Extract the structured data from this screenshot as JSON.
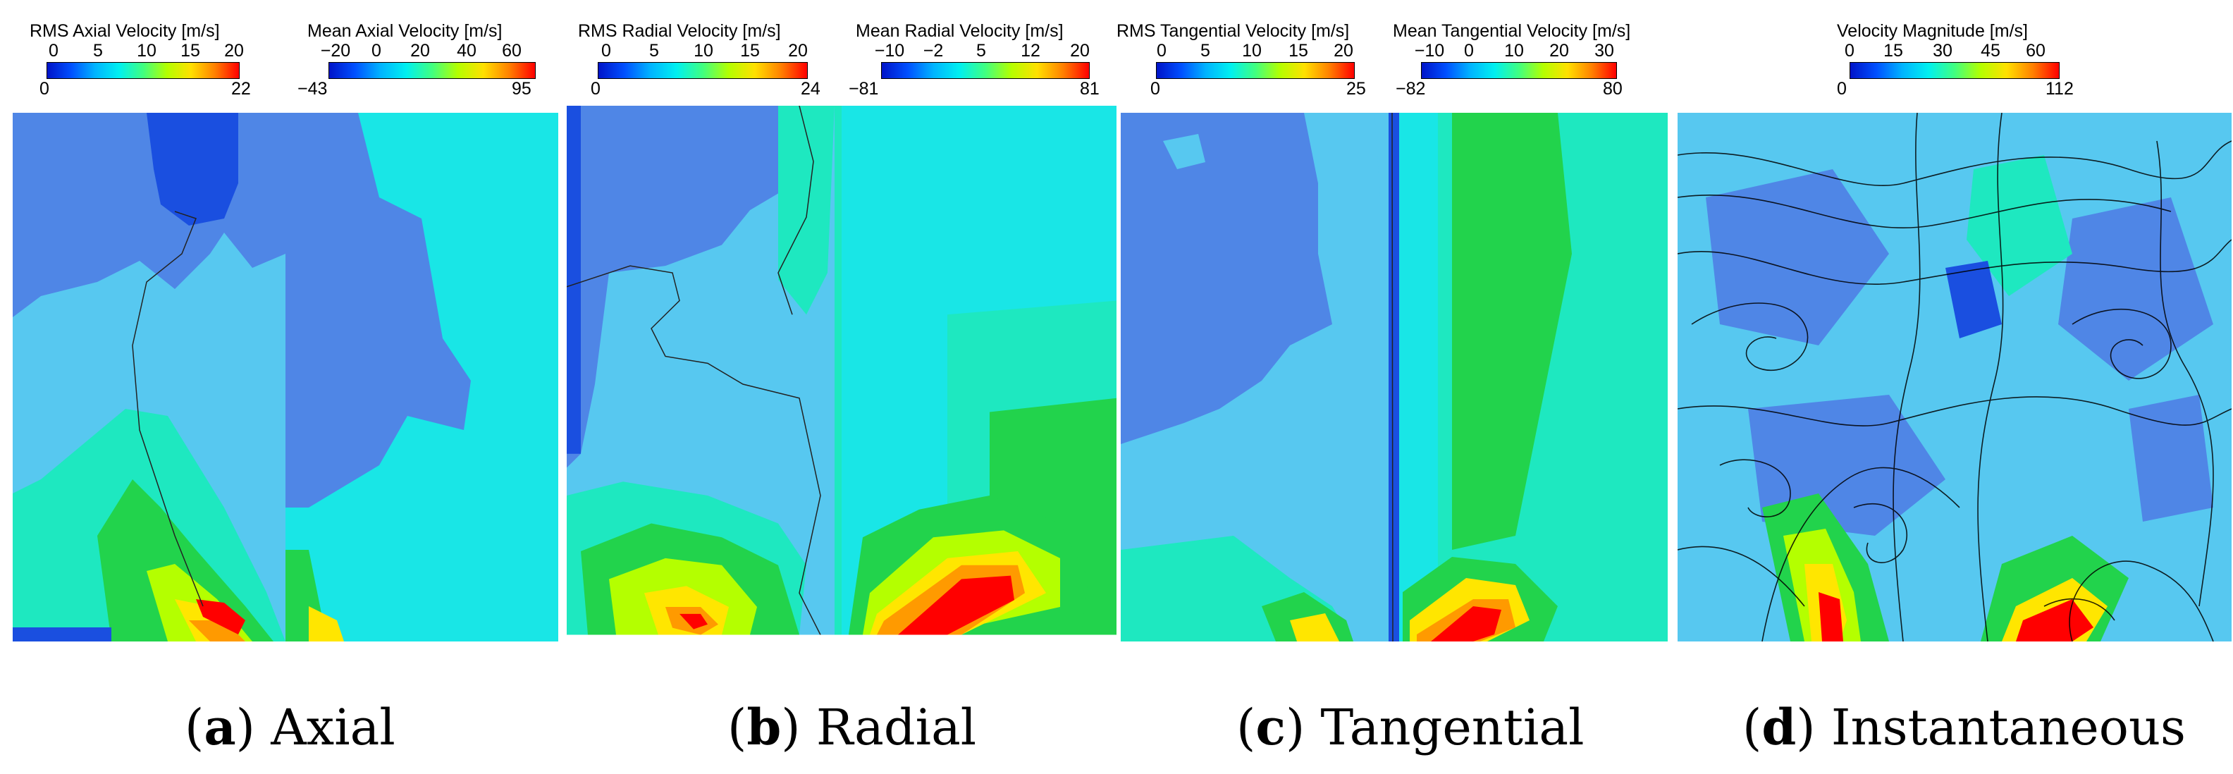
{
  "panels": [
    {
      "caption": {
        "letter": "a",
        "label": "Axial"
      },
      "left_bar": {
        "title": "RMS Axial Velocity [m/s]",
        "ticks": [
          "0",
          "5",
          "10",
          "15",
          "20"
        ],
        "min": "0",
        "max": "22"
      },
      "right_bar": {
        "title": "Mean Axial Velocity  [m/s]",
        "ticks": [
          "−20",
          "0",
          "20",
          "40",
          "60"
        ],
        "min": "−43",
        "max": "95"
      }
    },
    {
      "caption": {
        "letter": "b",
        "label": "Radial"
      },
      "left_bar": {
        "title": "RMS Radial Velocity  [m/s]",
        "ticks": [
          "0",
          "5",
          "10",
          "15",
          "20"
        ],
        "min": "0",
        "max": "24"
      },
      "right_bar": {
        "title": "Mean Radial Velocity [m/s]",
        "ticks": [
          "−10",
          "−2",
          "5",
          "12",
          "20"
        ],
        "min": "−81",
        "max": "81"
      }
    },
    {
      "caption": {
        "letter": "c",
        "label": "Tangential"
      },
      "left_bar": {
        "title": "RMS Tangential Velocity [m/s]",
        "ticks": [
          "0",
          "5",
          "10",
          "15",
          "20"
        ],
        "min": "0",
        "max": "25"
      },
      "right_bar": {
        "title": "Mean Tangential Velocity [m/s]",
        "ticks": [
          "−10",
          "0",
          "10",
          "20",
          "30"
        ],
        "min": "−82",
        "max": "80"
      }
    },
    {
      "caption": {
        "letter": "d",
        "label": "Instantaneous"
      },
      "single_bar": {
        "title": "Velocity Magnitude [m/s]",
        "ticks": [
          "0",
          "15",
          "30",
          "45",
          "60"
        ],
        "min": "0",
        "max": "112"
      }
    }
  ],
  "colors": {
    "dark_blue": "#1a4fe0",
    "mid_blue": "#4f86e6",
    "light_blue": "#57c8f0",
    "cyan": "#19e6e6",
    "teal": "#1ee8c0",
    "green": "#22d34c",
    "yellow": "#ffe600",
    "orange": "#ff9a00",
    "red": "#ff0000"
  }
}
